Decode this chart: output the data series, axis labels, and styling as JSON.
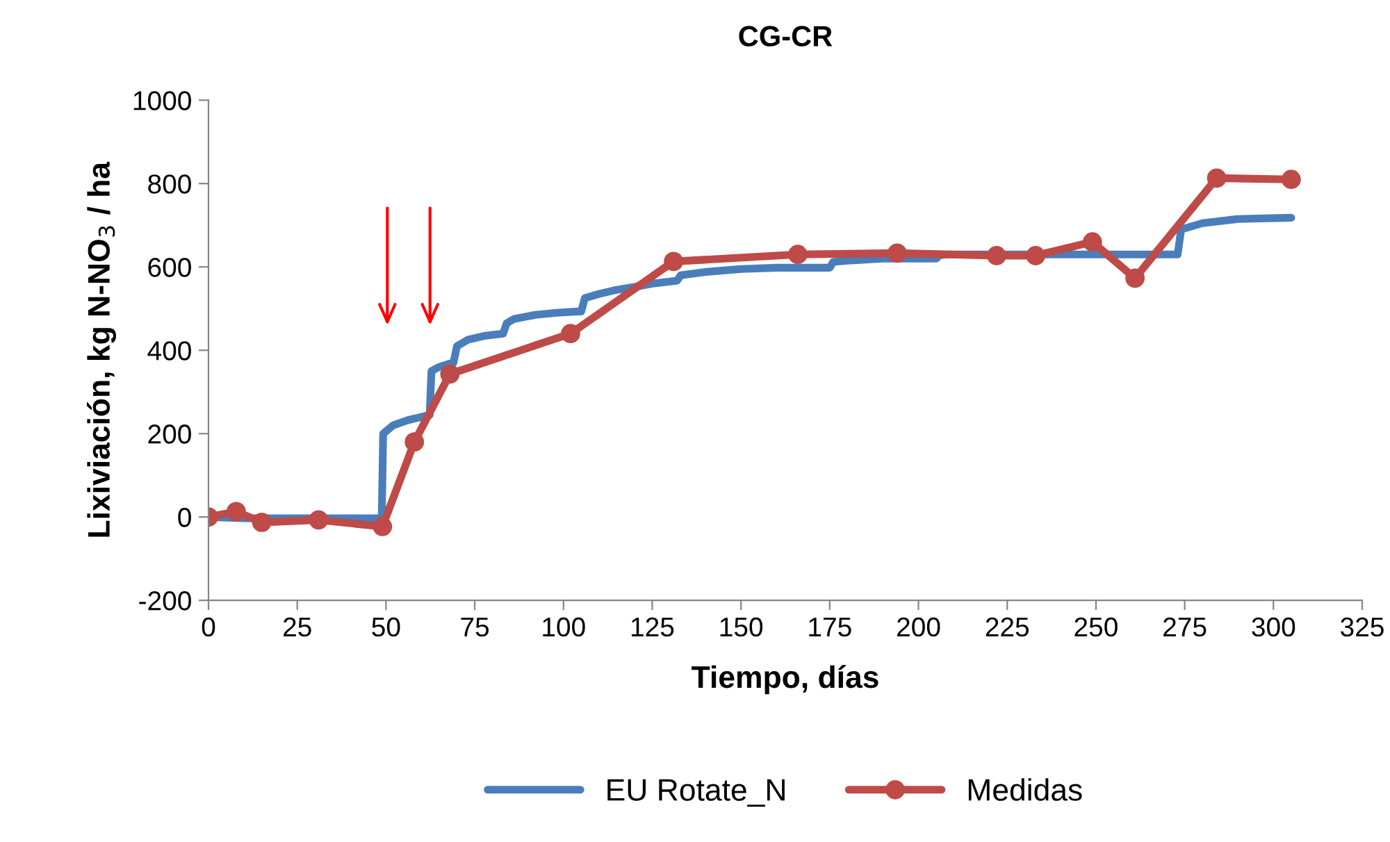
{
  "chart_data": {
    "type": "line",
    "title": "CG-CR",
    "xlabel": "Tiempo, días",
    "ylabel": "Lixiviación, kg N-NO$_{3}$ / ha",
    "xlim": [
      0,
      325
    ],
    "xticks": [
      0,
      25,
      50,
      75,
      100,
      125,
      150,
      175,
      200,
      225,
      250,
      275,
      300,
      325
    ],
    "ylim": [
      -200,
      1000
    ],
    "yticks": [
      -200,
      0,
      200,
      400,
      600,
      800,
      1000
    ],
    "grid": false,
    "legend": "bottom",
    "series": [
      {
        "name": "EU Rotate_N",
        "color": "#4a7ebb",
        "marker": "none",
        "x": [
          0,
          10,
          30,
          48.8,
          49.2,
          52,
          56,
          60,
          62.3,
          62.8,
          65,
          68,
          69,
          70,
          73,
          78,
          83,
          84,
          86,
          92,
          98,
          104,
          105,
          106,
          110,
          115,
          120,
          125,
          130,
          132,
          133,
          140,
          150,
          160,
          175,
          176,
          180,
          190,
          205,
          206,
          208,
          230,
          250,
          272,
          273,
          274,
          280,
          290,
          305
        ],
        "values": [
          0,
          -3,
          -3,
          -3,
          200,
          220,
          232,
          240,
          245,
          350,
          360,
          368,
          370,
          410,
          425,
          435,
          440,
          465,
          475,
          485,
          490,
          493,
          493,
          525,
          535,
          545,
          552,
          560,
          565,
          567,
          580,
          588,
          595,
          598,
          598,
          612,
          615,
          620,
          620,
          628,
          630,
          630,
          630,
          630,
          630,
          690,
          705,
          715,
          718
        ]
      },
      {
        "name": "Medidas",
        "color": "#be4b48",
        "marker": "circle",
        "x": [
          0,
          7.8,
          15,
          31,
          49,
          58,
          68,
          102,
          131,
          166,
          194,
          222,
          233,
          249,
          261,
          284,
          305
        ],
        "values": [
          0,
          13,
          -13,
          -7,
          -23,
          180,
          343,
          440,
          613,
          630,
          633,
          627,
          627,
          660,
          573,
          813,
          810
        ]
      }
    ]
  }
}
